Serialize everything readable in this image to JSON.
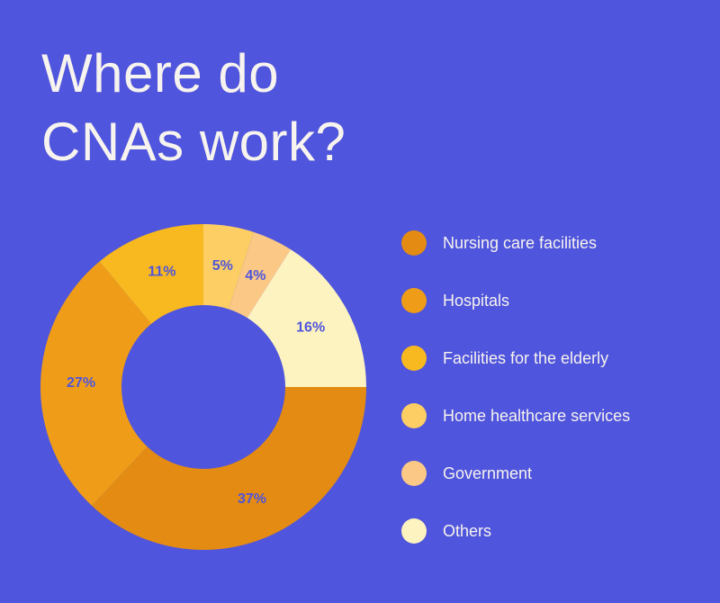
{
  "title_line1": "Where do",
  "title_line2": "CNAs work?",
  "chart_data": {
    "type": "pie",
    "title": "Where do CNAs work?",
    "categories": [
      "Nursing care facilities",
      "Hospitals",
      "Facilities for the elderly",
      "Home healthcare services",
      "Government",
      "Others"
    ],
    "values": [
      37,
      27,
      11,
      5,
      4,
      16
    ],
    "labels": [
      "37%",
      "27%",
      "11%",
      "5%",
      "4%",
      "16%"
    ],
    "colors": [
      "#e38b12",
      "#ef9d18",
      "#f8b81f",
      "#fcce64",
      "#fbc886",
      "#fdf3c0"
    ],
    "legend_position": "right",
    "donut": true
  }
}
